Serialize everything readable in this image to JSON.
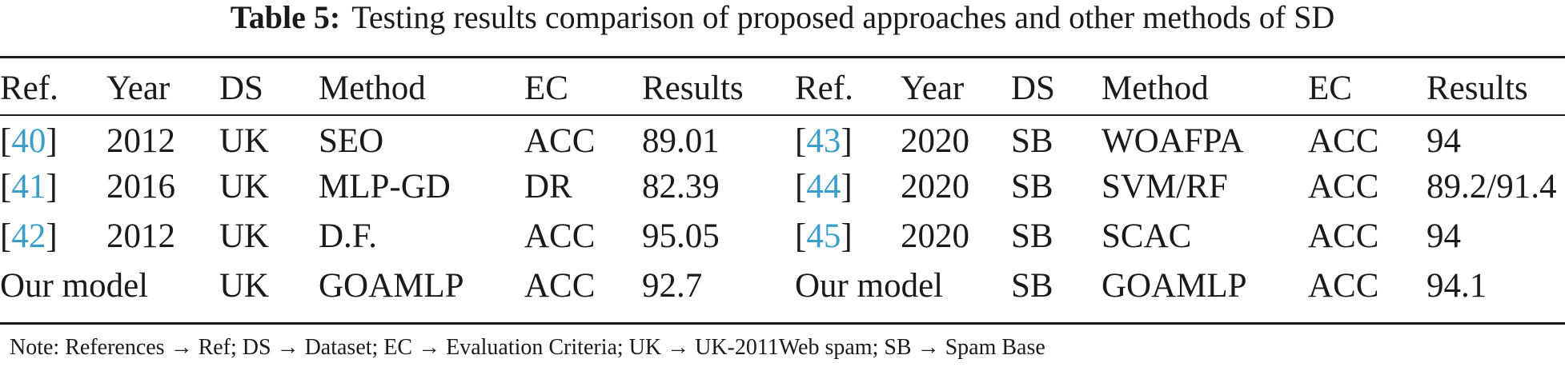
{
  "caption": {
    "label": "Table 5:",
    "text": "Testing results comparison of proposed approaches and other methods of SD"
  },
  "table": {
    "headers": [
      "Ref.",
      "Year",
      "DS",
      "Method",
      "EC",
      "Results",
      "Ref.",
      "Year",
      "DS",
      "Method",
      "EC",
      "Results"
    ],
    "rows": [
      {
        "left": {
          "ref": "40",
          "year": "2012",
          "ds": "UK",
          "method": "SEO",
          "ec": "ACC",
          "result": "89.01"
        },
        "right": {
          "ref": "43",
          "year": "2020",
          "ds": "SB",
          "method": "WOAFPA",
          "ec": "ACC",
          "result": "94"
        }
      },
      {
        "left": {
          "ref": "41",
          "year": "2016",
          "ds": "UK",
          "method": "MLP-GD",
          "ec": "DR",
          "result": "82.39"
        },
        "right": {
          "ref": "44",
          "year": "2020",
          "ds": "SB",
          "method": "SVM/RF",
          "ec": "ACC",
          "result": "89.2/91.4"
        }
      },
      {
        "left": {
          "ref": "42",
          "year": "2012",
          "ds": "UK",
          "method": "D.F.",
          "ec": "ACC",
          "result": "95.05"
        },
        "right": {
          "ref": "45",
          "year": "2020",
          "ds": "SB",
          "method": "SCAC",
          "ec": "ACC",
          "result": "94"
        }
      }
    ],
    "final_row": {
      "left": {
        "model": "Our model",
        "ds": "UK",
        "method": "GOAMLP",
        "ec": "ACC",
        "result": "92.7"
      },
      "right": {
        "model": "Our model",
        "ds": "SB",
        "method": "GOAMLP",
        "ec": "ACC",
        "result": "94.1"
      }
    }
  },
  "note": "Note: References → Ref; DS → Dataset; EC → Evaluation Criteria; UK → UK-2011Web spam; SB → Spam Base"
}
